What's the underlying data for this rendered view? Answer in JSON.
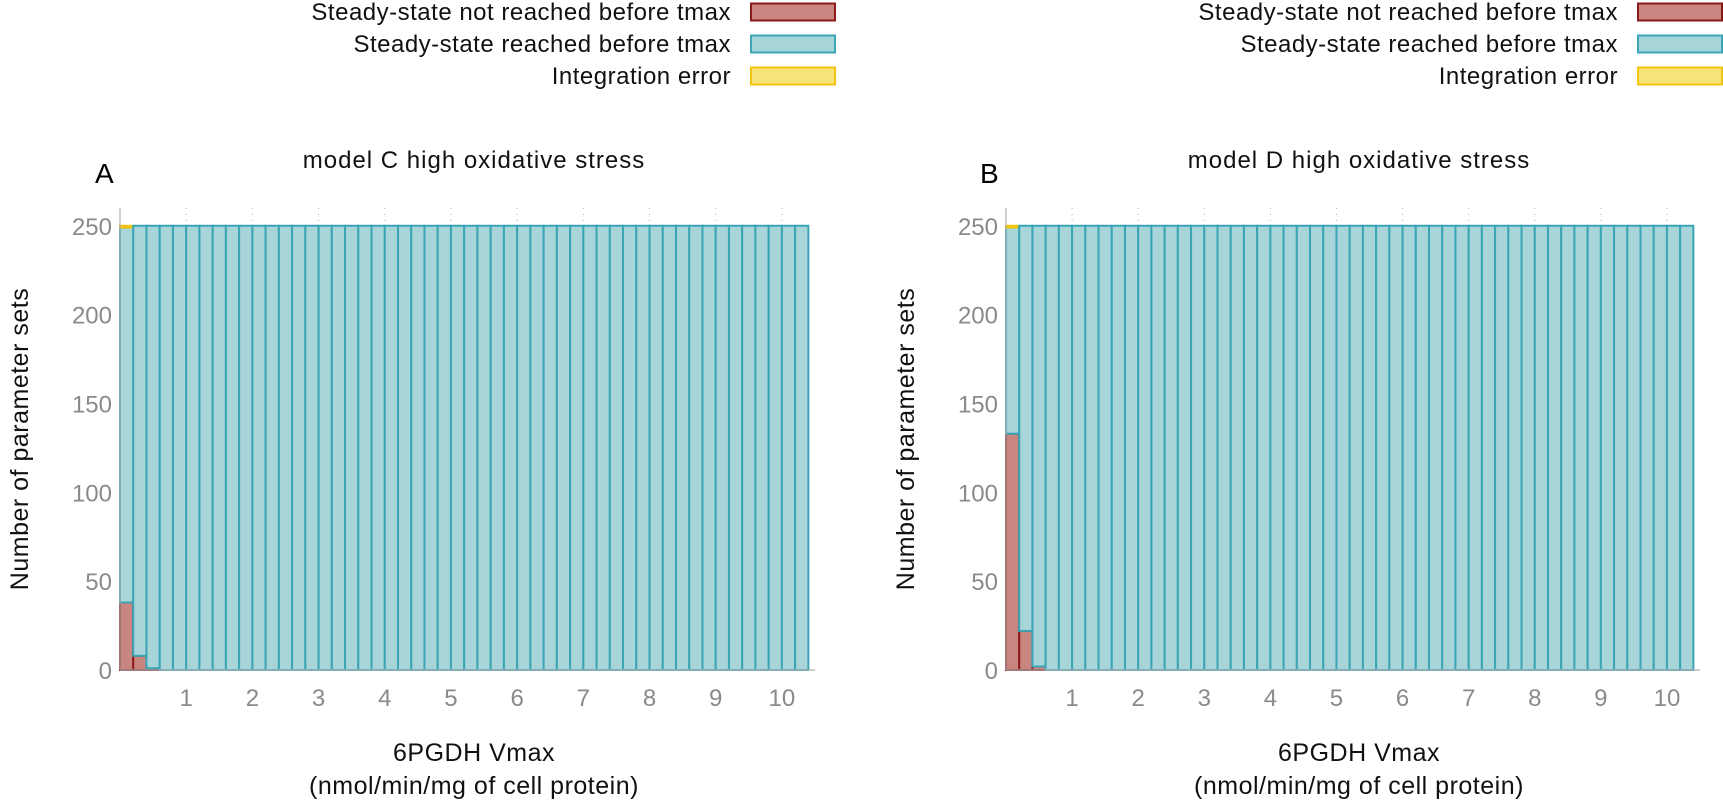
{
  "colors": {
    "not_reached_fill": "#c98580",
    "not_reached_stroke": "#8b1a1a",
    "reached_fill": "#a8d5da",
    "reached_stroke": "#3aa5b5",
    "error_fill": "#f7e37a",
    "error_stroke": "#f1c40f",
    "axis_text": "#8a8a8a",
    "grid": "#b0b0b0"
  },
  "chart_data": [
    {
      "type": "bar",
      "stacked": true,
      "panel_letter": "A",
      "title": "model C high  oxidative stress",
      "xlabel_line1": "6PGDH Vmax",
      "xlabel_line2": "(nmol/min/mg of cell protein)",
      "ylabel": "Number of parameter sets",
      "ylim": [
        0,
        260
      ],
      "yticks": [
        "0",
        "50",
        "100",
        "150",
        "200",
        "250"
      ],
      "xticks": [
        "1",
        "2",
        "3",
        "4",
        "5",
        "6",
        "7",
        "8",
        "9",
        "10"
      ],
      "xlim": [
        0.0,
        10.5
      ],
      "bin_width": 0.2,
      "bin_centers": [
        0.1,
        0.3,
        0.5,
        0.7,
        0.9,
        1.1,
        1.3,
        1.5,
        1.7,
        1.9,
        2.1,
        2.3,
        2.5,
        2.7,
        2.9,
        3.1,
        3.3,
        3.5,
        3.7,
        3.9,
        4.1,
        4.3,
        4.5,
        4.7,
        4.9,
        5.1,
        5.3,
        5.5,
        5.7,
        5.9,
        6.1,
        6.3,
        6.5,
        6.7,
        6.9,
        7.1,
        7.3,
        7.5,
        7.7,
        7.9,
        8.1,
        8.3,
        8.5,
        8.7,
        8.9,
        9.1,
        9.3,
        9.5,
        9.7,
        9.9,
        10.1,
        10.3
      ],
      "legend": [
        "Steady-state not reached before tmax",
        "Steady-state reached before tmax",
        "Integration error"
      ],
      "legend_position": "top-right",
      "series": [
        {
          "name": "Steady-state not reached before tmax",
          "values": [
            38,
            8,
            1,
            0,
            0,
            0,
            0,
            0,
            0,
            0,
            0,
            0,
            0,
            0,
            0,
            0,
            0,
            0,
            0,
            0,
            0,
            0,
            0,
            0,
            0,
            0,
            0,
            0,
            0,
            0,
            0,
            0,
            0,
            0,
            0,
            0,
            0,
            0,
            0,
            0,
            0,
            0,
            0,
            0,
            0,
            0,
            0,
            0,
            0,
            0,
            0,
            0
          ]
        },
        {
          "name": "Steady-state reached before tmax",
          "values": [
            211,
            242,
            249,
            250,
            250,
            250,
            250,
            250,
            250,
            250,
            250,
            250,
            250,
            250,
            250,
            250,
            250,
            250,
            250,
            250,
            250,
            250,
            250,
            250,
            250,
            250,
            250,
            250,
            250,
            250,
            250,
            250,
            250,
            250,
            250,
            250,
            250,
            250,
            250,
            250,
            250,
            250,
            250,
            250,
            250,
            250,
            250,
            250,
            250,
            250,
            250,
            250
          ]
        },
        {
          "name": "Integration error",
          "values": [
            1,
            0,
            0,
            0,
            0,
            0,
            0,
            0,
            0,
            0,
            0,
            0,
            0,
            0,
            0,
            0,
            0,
            0,
            0,
            0,
            0,
            0,
            0,
            0,
            0,
            0,
            0,
            0,
            0,
            0,
            0,
            0,
            0,
            0,
            0,
            0,
            0,
            0,
            0,
            0,
            0,
            0,
            0,
            0,
            0,
            0,
            0,
            0,
            0,
            0,
            0,
            0
          ]
        }
      ]
    },
    {
      "type": "bar",
      "stacked": true,
      "panel_letter": "B",
      "title": "model D high  oxidative stress",
      "xlabel_line1": "6PGDH Vmax",
      "xlabel_line2": "(nmol/min/mg of cell protein)",
      "ylabel": "Number of parameter sets",
      "ylim": [
        0,
        260
      ],
      "yticks": [
        "0",
        "50",
        "100",
        "150",
        "200",
        "250"
      ],
      "xticks": [
        "1",
        "2",
        "3",
        "4",
        "5",
        "6",
        "7",
        "8",
        "9",
        "10"
      ],
      "xlim": [
        0.0,
        10.5
      ],
      "bin_width": 0.2,
      "bin_centers": [
        0.1,
        0.3,
        0.5,
        0.7,
        0.9,
        1.1,
        1.3,
        1.5,
        1.7,
        1.9,
        2.1,
        2.3,
        2.5,
        2.7,
        2.9,
        3.1,
        3.3,
        3.5,
        3.7,
        3.9,
        4.1,
        4.3,
        4.5,
        4.7,
        4.9,
        5.1,
        5.3,
        5.5,
        5.7,
        5.9,
        6.1,
        6.3,
        6.5,
        6.7,
        6.9,
        7.1,
        7.3,
        7.5,
        7.7,
        7.9,
        8.1,
        8.3,
        8.5,
        8.7,
        8.9,
        9.1,
        9.3,
        9.5,
        9.7,
        9.9,
        10.1,
        10.3
      ],
      "legend": [
        "Steady-state not reached before tmax",
        "Steady-state reached before tmax",
        "Integration error"
      ],
      "legend_position": "top-right",
      "series": [
        {
          "name": "Steady-state not reached before tmax",
          "values": [
            133,
            22,
            2,
            0,
            0,
            0,
            0,
            0,
            0,
            0,
            0,
            0,
            0,
            0,
            0,
            0,
            0,
            0,
            0,
            0,
            0,
            0,
            0,
            0,
            0,
            0,
            0,
            0,
            0,
            0,
            0,
            0,
            0,
            0,
            0,
            0,
            0,
            0,
            0,
            0,
            0,
            0,
            0,
            0,
            0,
            0,
            0,
            0,
            0,
            0,
            0,
            0
          ]
        },
        {
          "name": "Steady-state reached before tmax",
          "values": [
            116,
            228,
            248,
            250,
            250,
            250,
            250,
            250,
            250,
            250,
            250,
            250,
            250,
            250,
            250,
            250,
            250,
            250,
            250,
            250,
            250,
            250,
            250,
            250,
            250,
            250,
            250,
            250,
            250,
            250,
            250,
            250,
            250,
            250,
            250,
            250,
            250,
            250,
            250,
            250,
            250,
            250,
            250,
            250,
            250,
            250,
            250,
            250,
            250,
            250,
            250,
            250
          ]
        },
        {
          "name": "Integration error",
          "values": [
            1,
            0,
            0,
            0,
            0,
            0,
            0,
            0,
            0,
            0,
            0,
            0,
            0,
            0,
            0,
            0,
            0,
            0,
            0,
            0,
            0,
            0,
            0,
            0,
            0,
            0,
            0,
            0,
            0,
            0,
            0,
            0,
            0,
            0,
            0,
            0,
            0,
            0,
            0,
            0,
            0,
            0,
            0,
            0,
            0,
            0,
            0,
            0,
            0,
            0,
            0,
            0
          ]
        }
      ]
    }
  ]
}
